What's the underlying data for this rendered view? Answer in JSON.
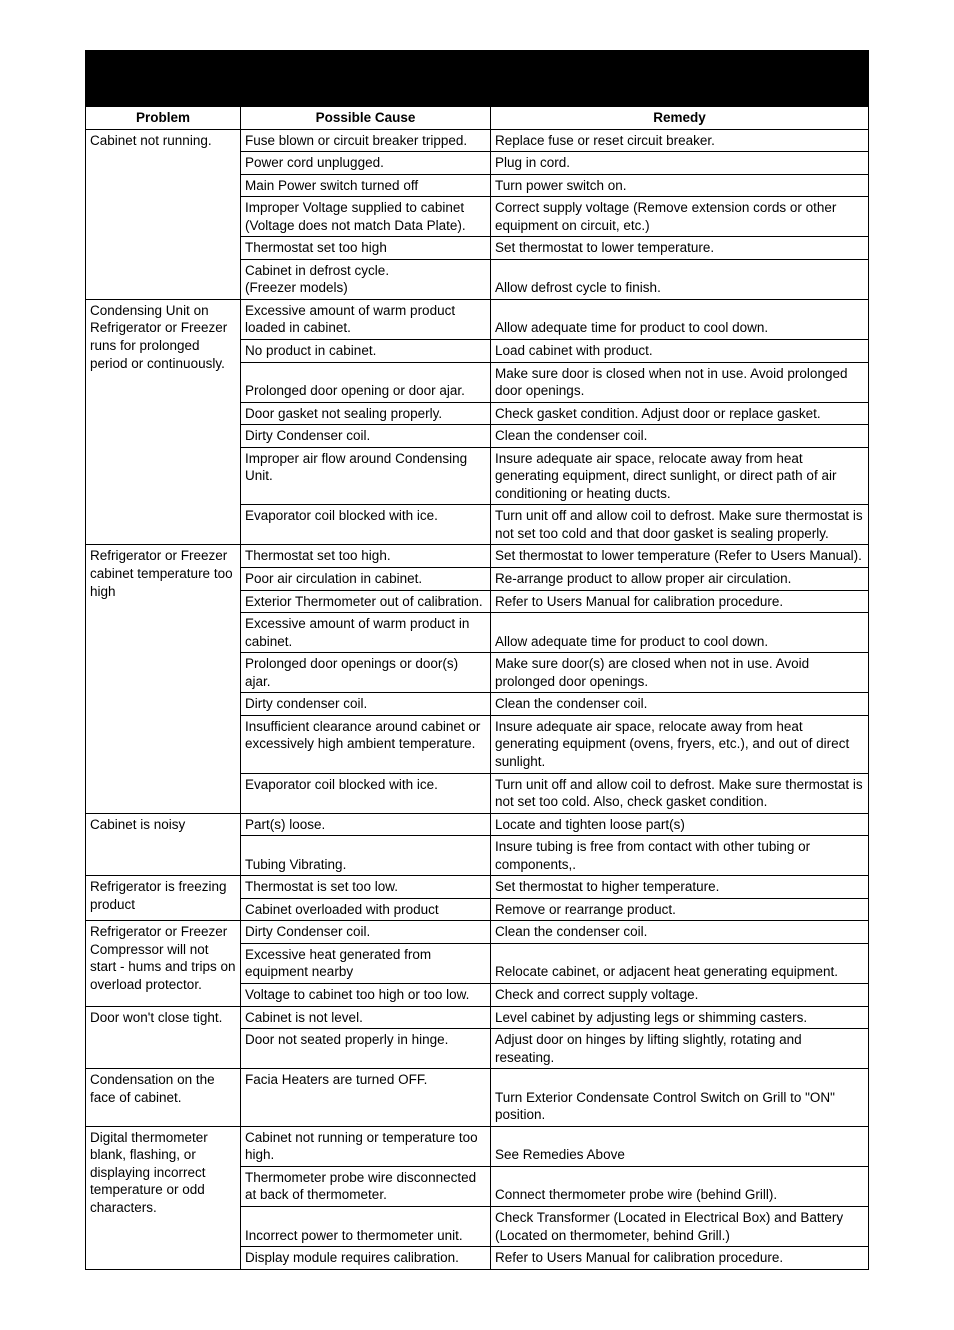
{
  "headers": {
    "problem": "Problem",
    "cause": "Possible Cause",
    "remedy": "Remedy"
  },
  "rows": [
    {
      "problem": "Cabinet not running.",
      "span": 6,
      "items": [
        {
          "cause": "Fuse blown or circuit breaker tripped.",
          "remedy": "Replace fuse or reset circuit breaker."
        },
        {
          "cause": "Power cord unplugged.",
          "remedy": "Plug in cord."
        },
        {
          "cause": "Main Power switch turned off",
          "remedy": "Turn power switch on."
        },
        {
          "cause": "Improper Voltage supplied to cabinet (Voltage does not match Data Plate).",
          "remedy": "Correct supply voltage (Remove extension cords or other equipment on circuit, etc.)"
        },
        {
          "cause": "Thermostat set too high",
          "remedy": "Set thermostat to lower temperature."
        },
        {
          "cause": "Cabinet in defrost cycle.\n(Freezer models)",
          "remedy": "\nAllow defrost cycle to finish."
        }
      ]
    },
    {
      "problem": "Condensing Unit on Refrigerator or Freezer runs for prolonged period or continuously.",
      "span": 7,
      "items": [
        {
          "cause": "Excessive amount of warm product loaded in cabinet.",
          "remedy": "\nAllow adequate time for product to cool down."
        },
        {
          "cause": "No product in cabinet.",
          "remedy": "Load cabinet with product."
        },
        {
          "cause": "\nProlonged door opening or door ajar.",
          "remedy": "Make sure door is closed when not in use.  Avoid prolonged door openings."
        },
        {
          "cause": "Door gasket not sealing properly.",
          "remedy": "Check gasket condition.  Adjust door or replace gasket."
        },
        {
          "cause": "Dirty Condenser coil.",
          "remedy": "Clean the condenser coil."
        },
        {
          "cause": "Improper air flow around Condensing Unit.",
          "remedy": "Insure adequate air space, relocate away from heat generating equipment, direct sunlight, or direct path of air conditioning or heating ducts."
        },
        {
          "cause": "Evaporator coil blocked with ice.",
          "remedy": "Turn unit off and allow coil to defrost.  Make sure thermostat is not set too cold and that door gasket is sealing properly."
        }
      ]
    },
    {
      "problem": "Refrigerator or Freezer cabinet temperature too high",
      "span": 8,
      "items": [
        {
          "cause": "Thermostat set too high.",
          "remedy": "Set thermostat to lower temperature (Refer to Users Manual)."
        },
        {
          "cause": "Poor air circulation in cabinet.",
          "remedy": "Re-arrange product to allow proper air circulation."
        },
        {
          "cause": "Exterior Thermometer out of calibration.",
          "remedy": "Refer to Users Manual for calibration procedure."
        },
        {
          "cause": "Excessive amount of warm product in cabinet.",
          "remedy": "\nAllow adequate time for product to cool down."
        },
        {
          "cause": "Prolonged door openings or door(s) ajar.",
          "remedy": "Make sure door(s) are closed when not in use.  Avoid prolonged door openings."
        },
        {
          "cause": "Dirty condenser coil.",
          "remedy": "Clean the condenser coil."
        },
        {
          "cause": "Insufficient clearance around cabinet or excessively high ambient temperature.",
          "remedy": "Insure adequate air space, relocate away from heat generating equipment (ovens, fryers, etc.), and out of direct sunlight."
        },
        {
          "cause": "Evaporator coil blocked with ice.",
          "remedy": "Turn unit off and allow coil to defrost.  Make sure thermostat is not set too cold.  Also, check gasket condition."
        }
      ]
    },
    {
      "problem": "Cabinet is noisy",
      "span": 2,
      "items": [
        {
          "cause": "Part(s) loose.",
          "remedy": "Locate and tighten loose part(s)"
        },
        {
          "cause": "\nTubing Vibrating.",
          "remedy": "Insure tubing is free from contact with other tubing or components,."
        }
      ]
    },
    {
      "problem": "Refrigerator is freezing product",
      "span": 2,
      "items": [
        {
          "cause": "Thermostat is set too low.",
          "remedy": "Set thermostat to higher temperature."
        },
        {
          "cause": "Cabinet overloaded with product",
          "remedy": "Remove or rearrange product."
        }
      ]
    },
    {
      "problem": "Refrigerator or Freezer Compressor will not start - hums and trips on overload protector.",
      "span": 3,
      "items": [
        {
          "cause": "Dirty Condenser coil.",
          "remedy": "Clean the condenser coil."
        },
        {
          "cause": "Excessive heat generated from equipment nearby",
          "remedy": "\nRelocate cabinet, or adjacent heat generating equipment."
        },
        {
          "cause": "Voltage to cabinet too high or too low.",
          "remedy": "Check and correct supply voltage."
        }
      ]
    },
    {
      "problem": "Door won't close tight.",
      "span": 2,
      "items": [
        {
          "cause": "Cabinet is not level.",
          "remedy": "Level cabinet by adjusting legs or shimming casters."
        },
        {
          "cause": "Door not seated properly in hinge.",
          "remedy": "Adjust door on hinges by lifting slightly, rotating and reseating."
        }
      ]
    },
    {
      "problem": "Condensation on the face of cabinet.",
      "span": 1,
      "items": [
        {
          "cause": "Facia Heaters are turned OFF.",
          "remedy": "\nTurn Exterior Condensate Control Switch on Grill to \"ON\" position."
        }
      ]
    },
    {
      "problem": "Digital thermometer blank, flashing, or displaying incorrect temperature or odd characters.",
      "span": 4,
      "items": [
        {
          "cause": "Cabinet not running or temperature too high.",
          "remedy": "\nSee Remedies Above"
        },
        {
          "cause": "Thermometer probe wire disconnected at back of thermometer.",
          "remedy": "\nConnect thermometer probe wire (behind Grill)."
        },
        {
          "cause": "\nIncorrect power to thermometer unit.",
          "remedy": "Check Transformer (Located in Electrical Box) and Battery (Located on thermometer, behind Grill.)"
        },
        {
          "cause": "Display module requires calibration.",
          "remedy": "Refer to Users Manual for calibration procedure."
        }
      ]
    }
  ]
}
